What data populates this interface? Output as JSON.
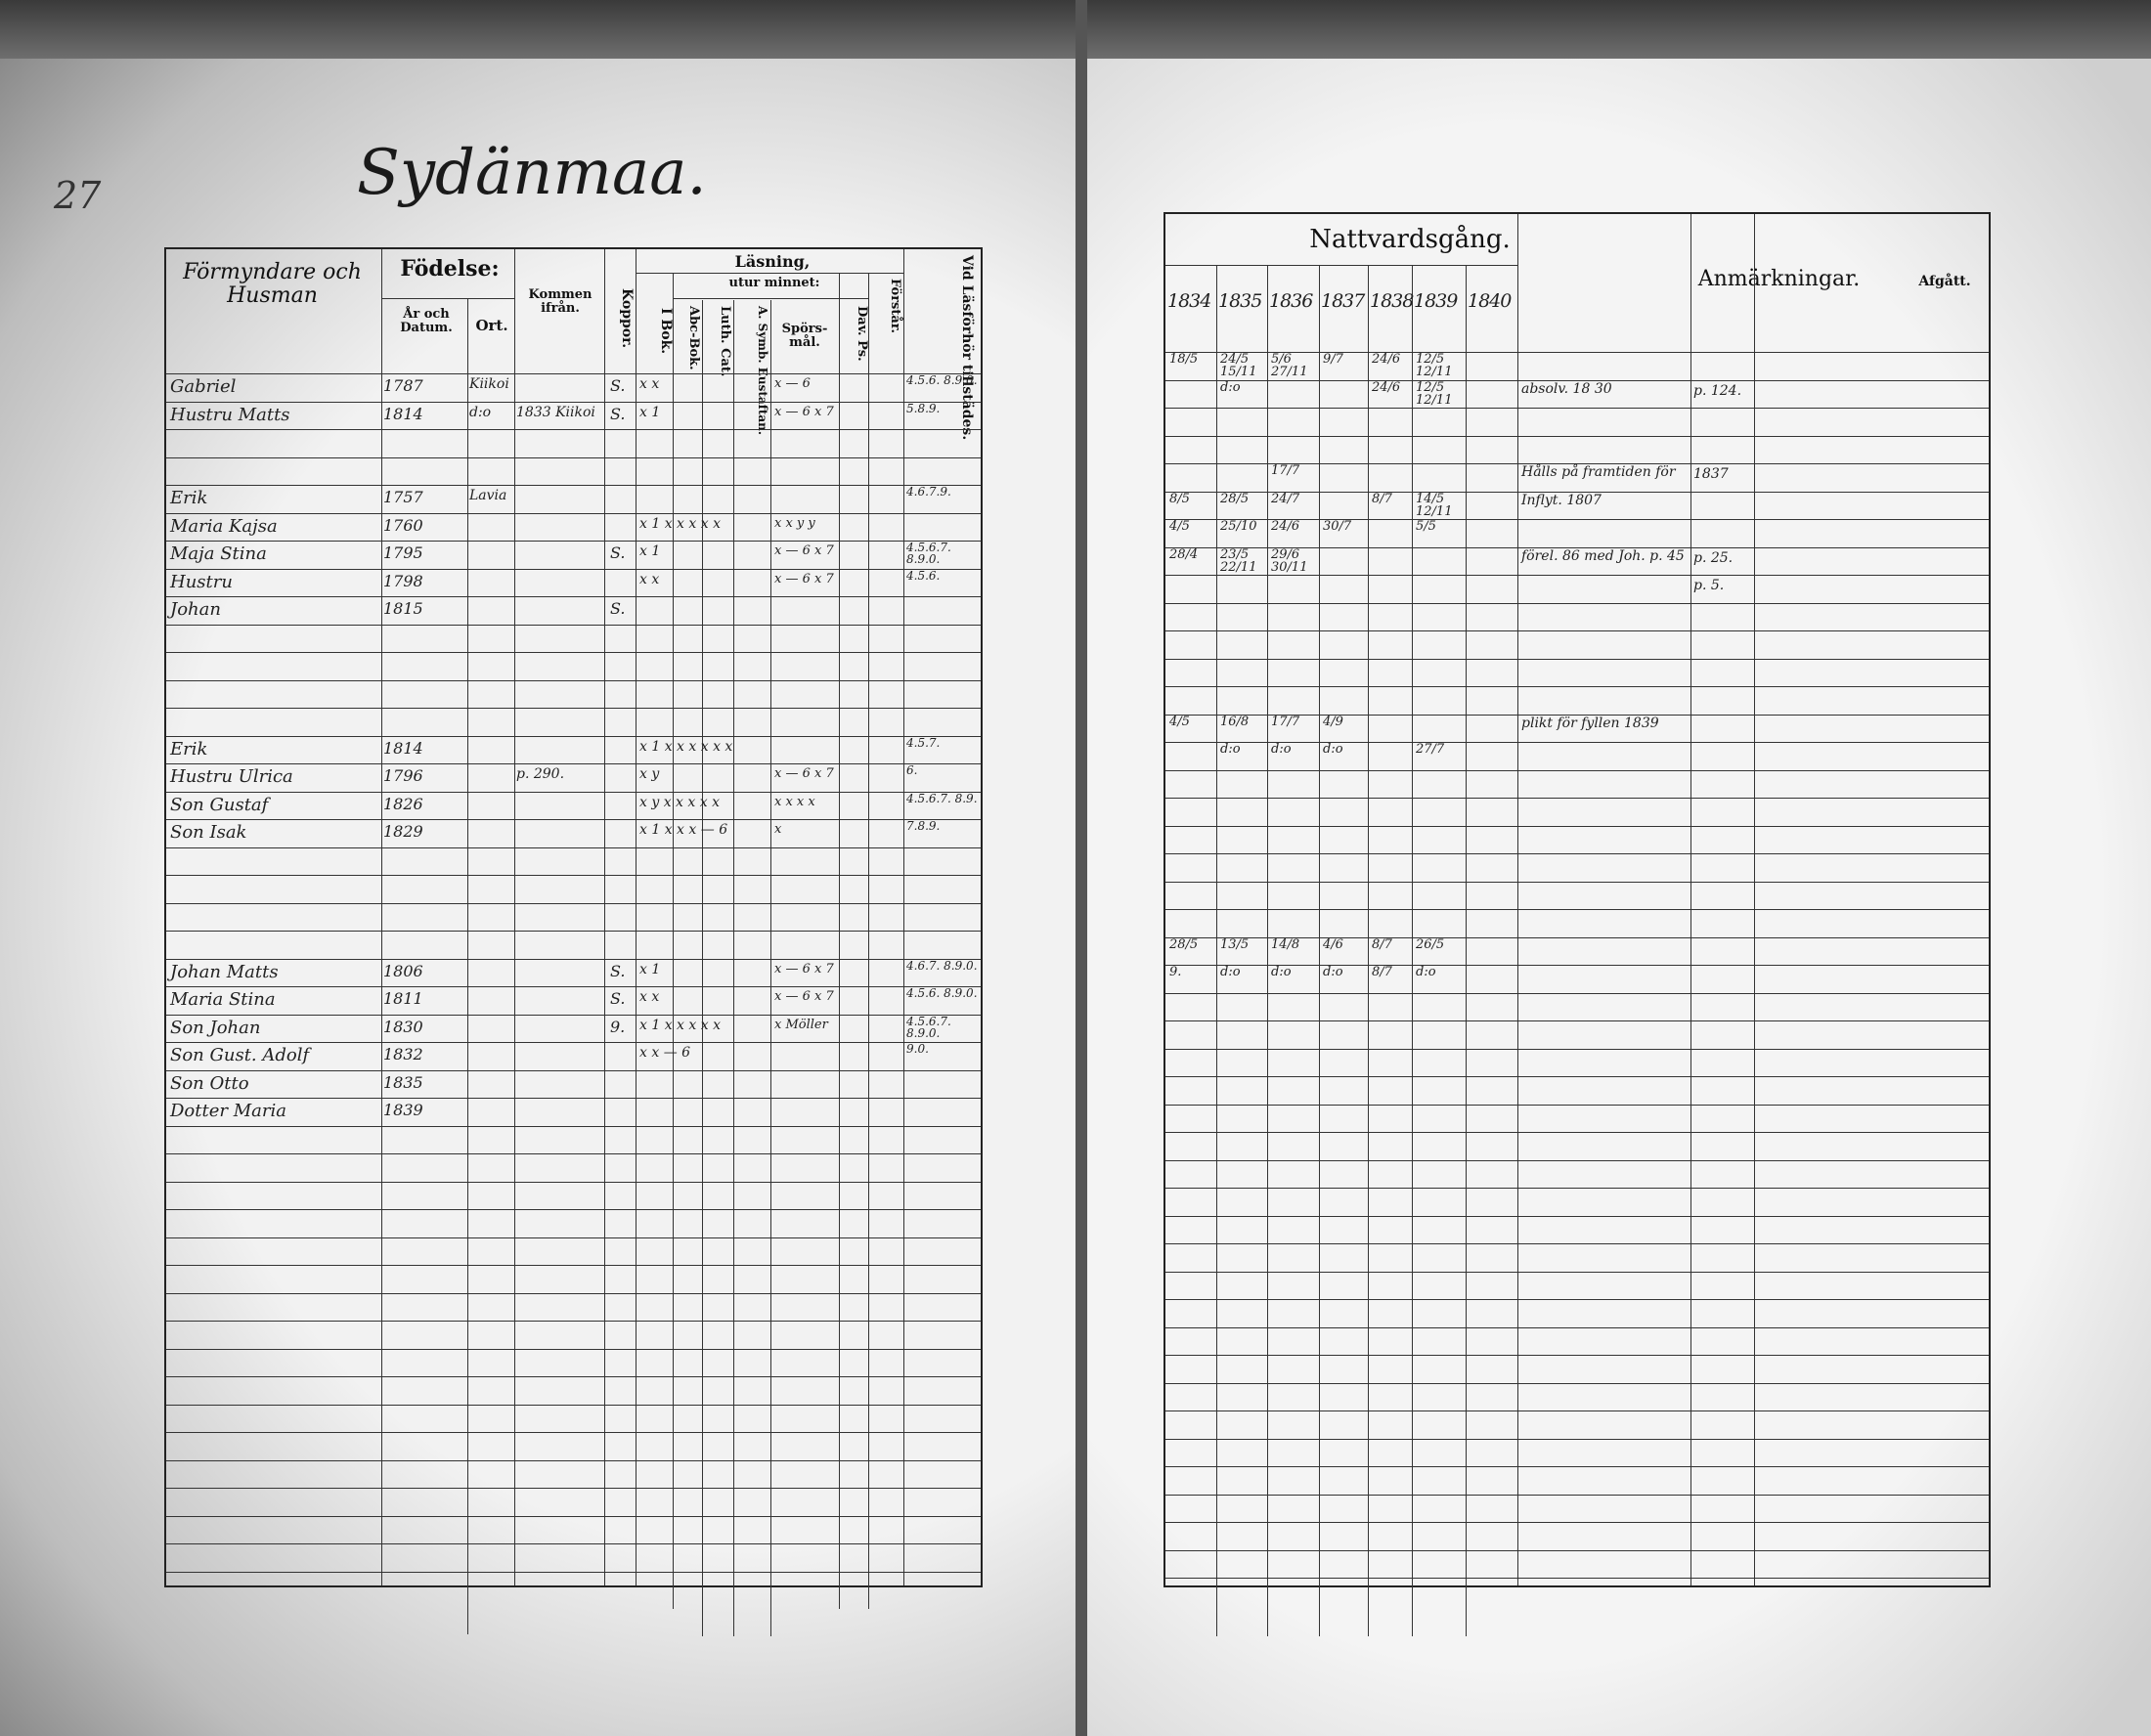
{
  "left_page": {
    "page_number": "27",
    "title": "Sydänmaa.",
    "headers": {
      "name": "Förmyndare och Husman",
      "fodelse": "Födelse:",
      "ar_datum": "År och Datum.",
      "ort": "Ort.",
      "kommen": "Kommen ifrån.",
      "koppor": "Koppor.",
      "lasning": "Läsning,",
      "utur_minnet": "utur minnet:",
      "i_bok": "I Bok.",
      "abc": "Abc-Bok.",
      "luth": "Luth. Cat.",
      "symb": "A. Symb. Eustaftan.",
      "sporsmal": "Spörs-mål.",
      "dav": "Dav. Ps.",
      "forstar": "Förstår.",
      "vid": "Vid Läsförhör tillstädes."
    },
    "entries": [
      {
        "name": "Gabriel",
        "born": "1787",
        "ort": "Kiikoi",
        "koppor": "S.",
        "lasn": "x x",
        "spors": "x — 6",
        "vid": "4.5.6. 8.9.0."
      },
      {
        "name": "Hustru Matts",
        "born": "1814",
        "ort": "d:o",
        "kommen": "1833 Kiikoi",
        "koppor": "S.",
        "lasn": "x 1",
        "spors": "x — 6 x 7",
        "vid": "5.8.9."
      },
      {
        "name": "Erik",
        "born": "1757",
        "ort": "Lavia",
        "vid": "4.6.7.9."
      },
      {
        "name": "Maria Kajsa",
        "born": "1760",
        "lasn": "x 1 x x x x x",
        "spors": "x x y y"
      },
      {
        "name": "Maja Stina",
        "born": "1795",
        "koppor": "S.",
        "lasn": "x 1",
        "spors": "x — 6 x 7",
        "vid": "4.5.6.7. 8.9.0."
      },
      {
        "name": "Hustru",
        "born": "1798",
        "lasn": "x x",
        "spors": "x — 6 x 7",
        "vid": "4.5.6."
      },
      {
        "name": "Johan",
        "born": "1815",
        "koppor": "S."
      },
      {
        "name": "Erik",
        "born": "1814",
        "lasn": "x 1 x x x x x x",
        "vid": "4.5.7."
      },
      {
        "name": "Hustru Ulrica",
        "born": "1796",
        "kommen": "p. 290.",
        "lasn": "x y",
        "spors": "x — 6 x 7",
        "vid": "6."
      },
      {
        "name": "Son Gustaf",
        "born": "1826",
        "lasn": "x y x x x x x",
        "spors": "x x x x",
        "vid": "4.5.6.7. 8.9."
      },
      {
        "name": "Son Isak",
        "born": "1829",
        "lasn": "x 1 x x x — 6",
        "spors": "x",
        "vid": "7.8.9."
      },
      {
        "name": "Johan Matts",
        "born": "1806",
        "koppor": "S.",
        "lasn": "x 1",
        "spors": "x — 6 x 7",
        "vid": "4.6.7. 8.9.0."
      },
      {
        "name": "Maria Stina",
        "born": "1811",
        "koppor": "S.",
        "lasn": "x x",
        "spors": "x — 6 x 7",
        "vid": "4.5.6. 8.9.0."
      },
      {
        "name": "Son Johan",
        "born": "1830",
        "koppor": "9.",
        "lasn": "x 1 x x x x x",
        "spors": "x Möller",
        "vid": "4.5.6.7. 8.9.0."
      },
      {
        "name": "Son Gust. Adolf",
        "born": "1832",
        "lasn": "x x — 6",
        "vid": "9.0."
      },
      {
        "name": "Son Otto",
        "born": "1835"
      },
      {
        "name": "Dotter Maria",
        "born": "1839"
      }
    ]
  },
  "right_page": {
    "headers": {
      "nattvard": "Nattvardsgång.",
      "years": [
        "1834",
        "1835",
        "1836",
        "1837",
        "1838",
        "1839",
        "1840"
      ],
      "anmarkningar": "Anmärkningar.",
      "afgatt": "Afgått."
    },
    "entries": [
      {
        "n": [
          "18/5",
          "24/5 15/11",
          "5/6 27/11",
          "9/7",
          "24/6",
          "12/5 12/11",
          ""
        ]
      },
      {
        "n": [
          "",
          "d:o",
          "",
          "",
          "24/6",
          "12/5 12/11",
          ""
        ],
        "anm": "absolv. 18 30",
        "afgatt": "p. 124."
      },
      {
        "n": [
          "",
          "",
          "17/7",
          "",
          "",
          "",
          ""
        ],
        "anm": "Hålls på framtiden för",
        "afgatt": "1837"
      },
      {
        "n": [
          "8/5",
          "28/5",
          "24/7",
          "",
          "8/7",
          "14/5 12/11",
          ""
        ],
        "anm": "Inflyt. 1807"
      },
      {
        "n": [
          "4/5",
          "25/10",
          "24/6",
          "30/7",
          "",
          "5/5",
          ""
        ]
      },
      {
        "n": [
          "28/4",
          "23/5 22/11",
          "29/6 30/11",
          "",
          "",
          "",
          ""
        ],
        "anm": "förel. 86 med Joh. p. 45",
        "afgatt": "p. 25."
      },
      {
        "n": [
          "",
          "",
          "",
          "",
          "",
          "",
          ""
        ],
        "afgatt": "p. 5."
      },
      {
        "n": [
          "4/5",
          "16/8",
          "17/7",
          "4/9",
          "",
          "",
          ""
        ],
        "anm": "plikt för fyllen 1839"
      },
      {
        "n": [
          "",
          "d:o",
          "d:o",
          "d:o",
          "",
          "27/7",
          ""
        ]
      },
      {
        "n": [
          "28/5",
          "13/5",
          "14/8",
          "4/6",
          "8/7",
          "26/5",
          ""
        ]
      },
      {
        "n": [
          "9.",
          "d:o",
          "d:o",
          "d:o",
          "8/7",
          "d:o",
          ""
        ]
      }
    ]
  }
}
